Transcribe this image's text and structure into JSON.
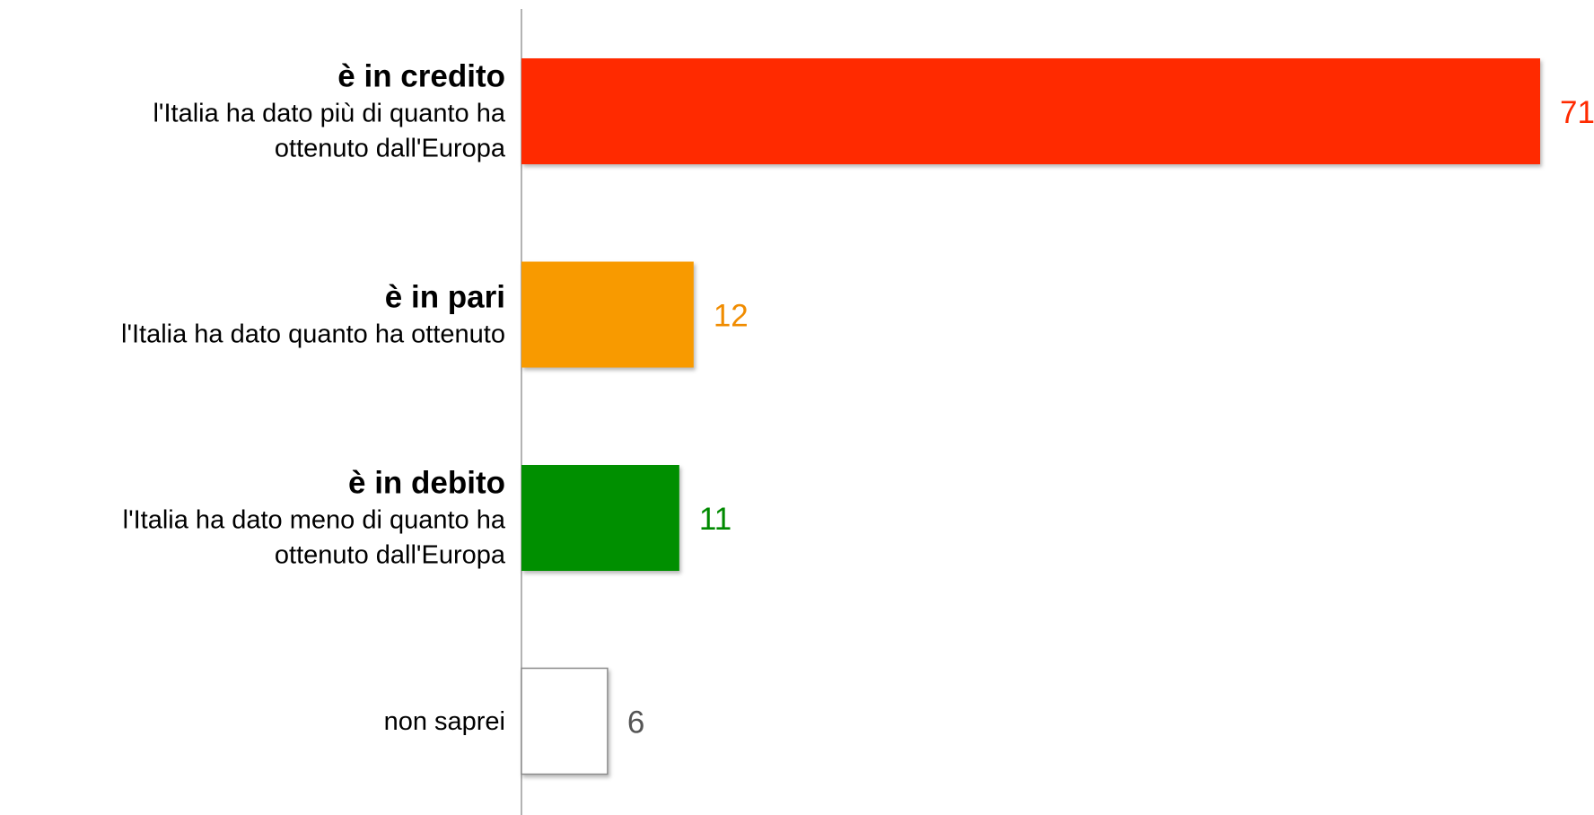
{
  "chart_data": {
    "type": "bar",
    "orientation": "horizontal",
    "categories": [
      {
        "title": "è in credito",
        "subtitle_lines": [
          "l'Italia ha dato più di quanto ha",
          "ottenuto dall'Europa"
        ]
      },
      {
        "title": "è in pari",
        "subtitle_lines": [
          "l'Italia ha dato quanto ha ottenuto"
        ]
      },
      {
        "title": "è in debito",
        "subtitle_lines": [
          "l'Italia ha dato meno di quanto ha",
          "ottenuto dall'Europa"
        ]
      },
      {
        "title": "",
        "subtitle_lines": [
          "non saprei"
        ]
      }
    ],
    "values": [
      71,
      12,
      11,
      6
    ],
    "value_labels": [
      "71",
      "12",
      "11",
      "6"
    ],
    "bar_colors": [
      "#ff2a00",
      "#f89a00",
      "#008f00",
      "#ffffff"
    ],
    "label_colors": [
      "#ff2a00",
      "#f08c00",
      "#008a00",
      "#555555"
    ],
    "xlim": [
      0,
      71
    ],
    "grid": false,
    "legend": "none"
  }
}
